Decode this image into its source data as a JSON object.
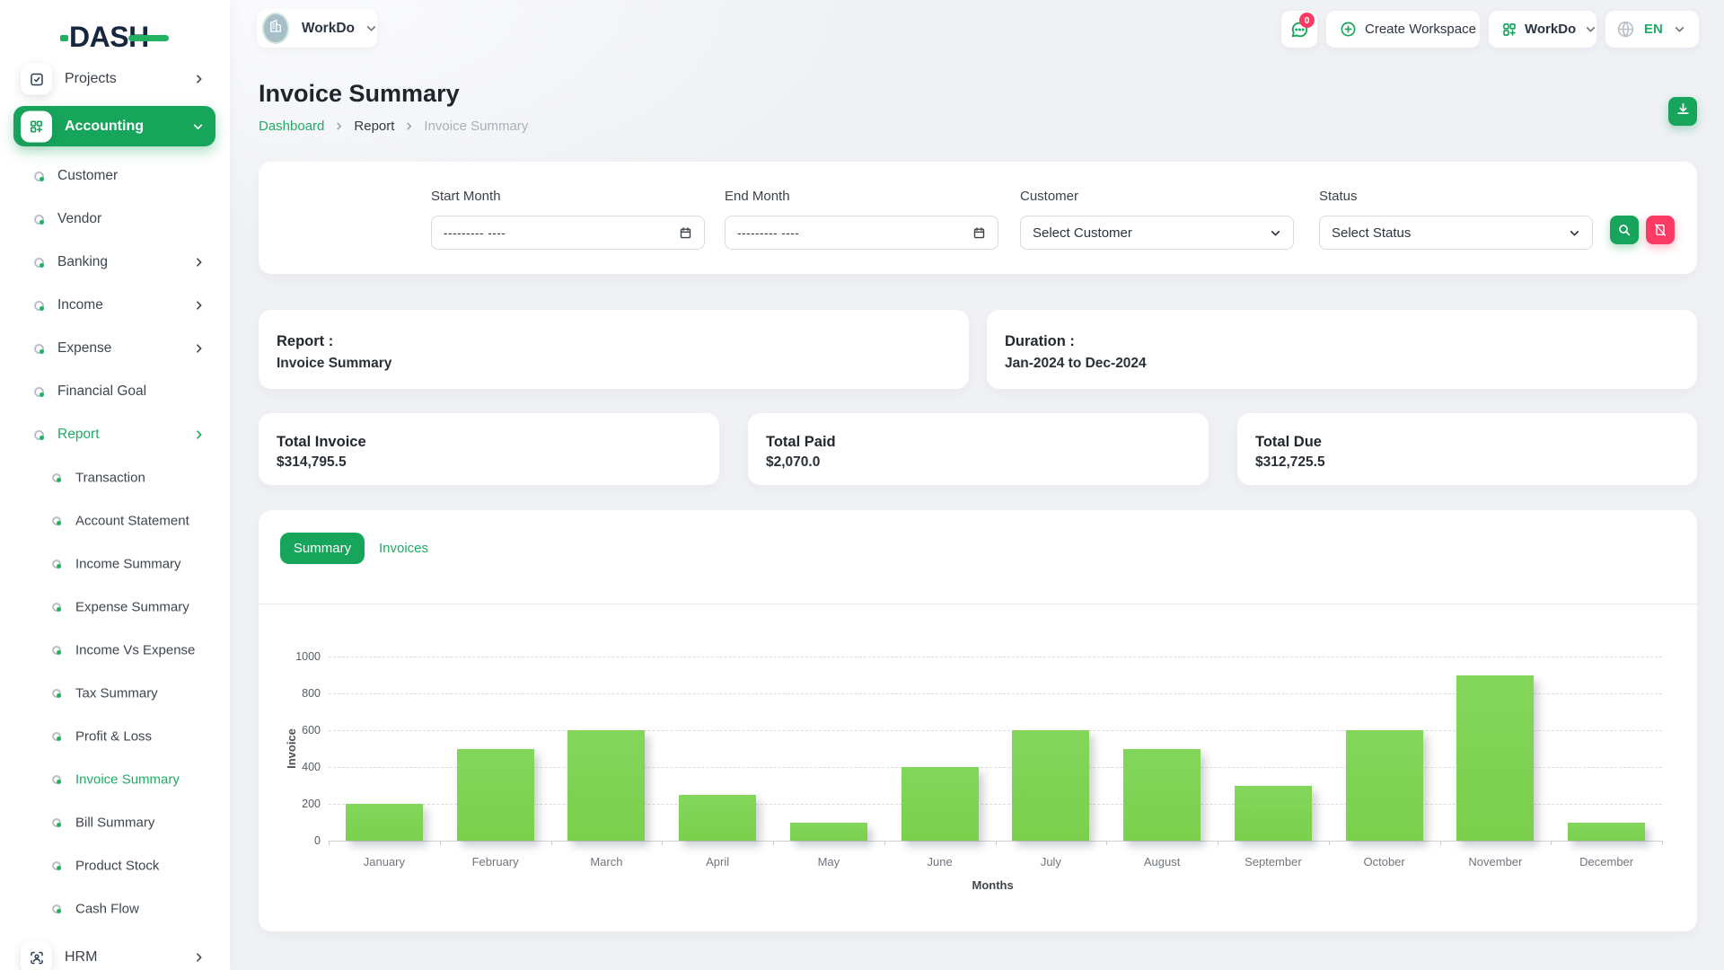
{
  "brand": {
    "name": "DASH"
  },
  "workspace_chip": {
    "label": "WorkDo"
  },
  "header": {
    "chat_badge": "0",
    "create_workspace_label": "Create Workspace",
    "app_menu_label": "WorkDo",
    "language_label": "EN"
  },
  "page": {
    "title": "Invoice Summary",
    "breadcrumb": [
      "Dashboard",
      "Report",
      "Invoice Summary"
    ]
  },
  "sidebar": {
    "items": [
      {
        "label": "Projects",
        "kind": "section",
        "icon": "checkbox-icon",
        "chevron": "right"
      },
      {
        "label": "Accounting",
        "kind": "pill",
        "icon": "grid-plus-icon",
        "chevron": "down",
        "active": true
      },
      {
        "label": "Customer",
        "kind": "item"
      },
      {
        "label": "Vendor",
        "kind": "item"
      },
      {
        "label": "Banking",
        "kind": "item",
        "chevron": "right"
      },
      {
        "label": "Income",
        "kind": "item",
        "chevron": "right"
      },
      {
        "label": "Expense",
        "kind": "item",
        "chevron": "right"
      },
      {
        "label": "Financial Goal",
        "kind": "item"
      },
      {
        "label": "Report",
        "kind": "item",
        "chevron": "right",
        "active": true
      },
      {
        "label": "Transaction",
        "kind": "sub"
      },
      {
        "label": "Account Statement",
        "kind": "sub"
      },
      {
        "label": "Income Summary",
        "kind": "sub"
      },
      {
        "label": "Expense Summary",
        "kind": "sub"
      },
      {
        "label": "Income Vs Expense",
        "kind": "sub"
      },
      {
        "label": "Tax Summary",
        "kind": "sub"
      },
      {
        "label": "Profit & Loss",
        "kind": "sub"
      },
      {
        "label": "Invoice Summary",
        "kind": "sub",
        "active": true
      },
      {
        "label": "Bill Summary",
        "kind": "sub"
      },
      {
        "label": "Product Stock",
        "kind": "sub"
      },
      {
        "label": "Cash Flow",
        "kind": "sub"
      },
      {
        "label": "HRM",
        "kind": "section",
        "icon": "user-focus-icon",
        "chevron": "right"
      }
    ]
  },
  "filters": {
    "fields": [
      {
        "label": "Start Month",
        "type": "date",
        "value": "--------- ----",
        "icon": "calendar-icon"
      },
      {
        "label": "End Month",
        "type": "date",
        "value": "--------- ----",
        "icon": "calendar-icon"
      },
      {
        "label": "Customer",
        "type": "select",
        "value": "Select Customer",
        "icon": "chevron-down-icon"
      },
      {
        "label": "Status",
        "type": "select",
        "value": "Select Status",
        "icon": "chevron-down-icon"
      }
    ]
  },
  "info_cards": [
    {
      "title": "Report :",
      "value": "Invoice Summary"
    },
    {
      "title": "Duration :",
      "value": "Jan-2024 to Dec-2024"
    }
  ],
  "summary_cards": [
    {
      "title": "Total Invoice",
      "value": "$314,795.5"
    },
    {
      "title": "Total Paid",
      "value": "$2,070.0"
    },
    {
      "title": "Total Due",
      "value": "$312,725.5"
    }
  ],
  "tabs": [
    {
      "label": "Summary",
      "active": true
    },
    {
      "label": "Invoices",
      "active": false
    }
  ],
  "chart_data": {
    "type": "bar",
    "title": "",
    "categories": [
      "January",
      "February",
      "March",
      "April",
      "May",
      "June",
      "July",
      "August",
      "September",
      "October",
      "November",
      "December"
    ],
    "values": [
      200,
      500,
      600,
      250,
      100,
      400,
      600,
      500,
      300,
      600,
      900,
      100
    ],
    "xlabel": "Months",
    "ylabel": "Invoice",
    "ylim": [
      0,
      1000
    ],
    "ytick_step": 200,
    "bar_color": "#7ed154",
    "grid": true,
    "legend": false
  },
  "colors": {
    "primary_green": "#17a55b",
    "pink": "#fb3b64",
    "bar_green": "#7ed154"
  }
}
